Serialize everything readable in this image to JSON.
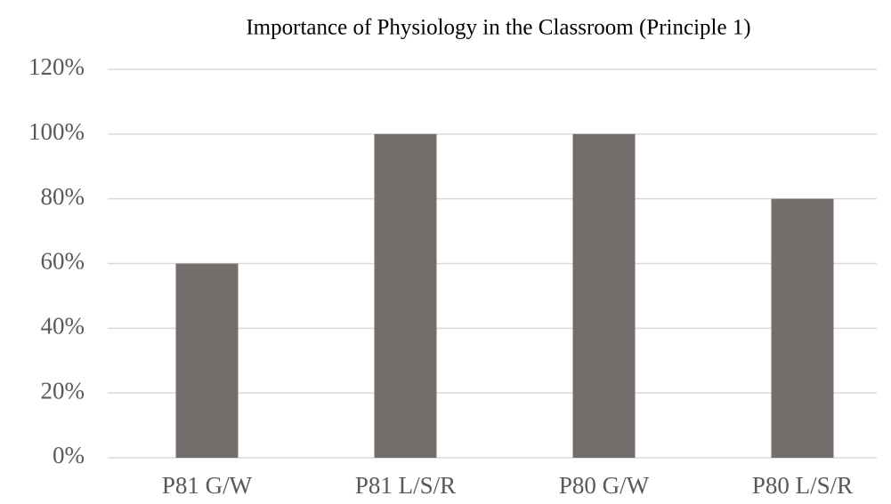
{
  "chart_data": {
    "type": "bar",
    "title": "Importance of Physiology in the Classroom (Principle 1)",
    "categories": [
      "P81 G/W",
      "P81 L/S/R",
      "P80 G/W",
      "P80 L/S/R"
    ],
    "values": [
      60,
      100,
      100,
      80
    ],
    "color": "#736e6c",
    "ylim": [
      0,
      120
    ],
    "yticks": [
      {
        "value": 0,
        "label": "0%"
      },
      {
        "value": 20,
        "label": "20%"
      },
      {
        "value": 40,
        "label": "40%"
      },
      {
        "value": 60,
        "label": "60%"
      },
      {
        "value": 80,
        "label": "80%"
      },
      {
        "value": 100,
        "label": "100%"
      },
      {
        "value": 120,
        "label": "120%"
      }
    ],
    "grid": true
  }
}
